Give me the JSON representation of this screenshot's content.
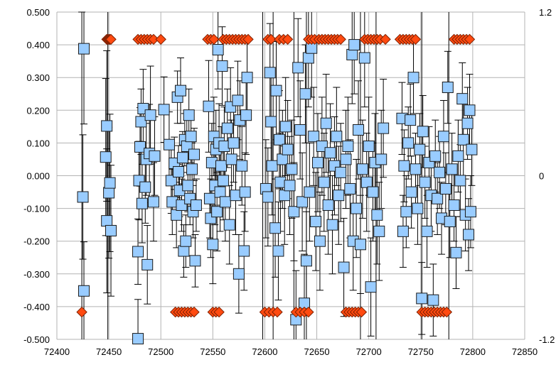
{
  "chart_data": {
    "type": "scatter",
    "title": "",
    "xlabel": "",
    "ylabel": "",
    "xlim": [
      72400,
      72850
    ],
    "ylim": [
      -0.5,
      0.5
    ],
    "y2lim": [
      -1.2,
      1.2
    ],
    "grid": true,
    "legend": "none",
    "x_ticks": [
      "72400",
      "72450",
      "72500",
      "72550",
      "72600",
      "72650",
      "72700",
      "72750",
      "72800",
      "72850"
    ],
    "y_ticks": [
      "-0.500",
      "-0.400",
      "-0.300",
      "-0.200",
      "-0.100",
      "0.000",
      "0.100",
      "0.200",
      "0.300",
      "0.400",
      "0.500"
    ],
    "y2_ticks": [
      "-1.2",
      "0",
      "1.2"
    ],
    "colors": {
      "squares_fill": "#99ccff",
      "squares_stroke": "#1a1a1a",
      "diamonds_fill": "#ff4a10",
      "diamonds_stroke": "#7a1f00",
      "error_bars": "#000000",
      "grid": "#b3b3b3",
      "axis": "#b3b3b3"
    },
    "series": [
      {
        "marker": "square",
        "axis": "y",
        "points": [
          [
            72425,
            -0.065,
            0.19
          ],
          [
            72426,
            0.388,
            0.23
          ],
          [
            72426,
            -0.352,
            0.15
          ],
          [
            72447,
            0.057,
            0.24
          ],
          [
            72448,
            0.152,
            0.23
          ],
          [
            72448,
            -0.138,
            0.22
          ],
          [
            72450,
            -0.052,
            0.2
          ],
          [
            72451,
            -0.022,
            0.21
          ],
          [
            72452,
            -0.168,
            0.2
          ],
          [
            72478,
            -0.498,
            0.12
          ],
          [
            72478,
            -0.232,
            0.1
          ],
          [
            72479,
            -0.015,
            0.12
          ],
          [
            72480,
            0.088,
            0.12
          ],
          [
            72481,
            0.165,
            0.1
          ],
          [
            72482,
            -0.085,
            0.12
          ],
          [
            72483,
            0.205,
            0.12
          ],
          [
            72485,
            -0.035,
            0.11
          ],
          [
            72486,
            0.05,
            0.11
          ],
          [
            72487,
            -0.272,
            0.12
          ],
          [
            72489,
            0.068,
            0.15
          ],
          [
            72490,
            0.185,
            0.15
          ],
          [
            72493,
            -0.08,
            0.12
          ],
          [
            72494,
            0.06,
            0.12
          ],
          [
            72503,
            0.202,
            0.1
          ],
          [
            72508,
            0.095,
            0.1
          ],
          [
            72510,
            -0.015,
            0.1
          ],
          [
            72511,
            -0.08,
            0.1
          ],
          [
            72513,
            0.038,
            0.08
          ],
          [
            72515,
            -0.12,
            0.1
          ],
          [
            72516,
            0.24,
            0.08
          ],
          [
            72517,
            0.012,
            0.08
          ],
          [
            72518,
            -0.045,
            0.08
          ],
          [
            72519,
            0.26,
            0.1
          ],
          [
            72520,
            -0.09,
            0.08
          ],
          [
            72521,
            0.055,
            0.08
          ],
          [
            72522,
            -0.23,
            0.08
          ],
          [
            72523,
            0.11,
            0.08
          ],
          [
            72524,
            -0.2,
            0.08
          ],
          [
            72525,
            0.09,
            0.08
          ],
          [
            72526,
            -0.03,
            0.08
          ],
          [
            72527,
            0.185,
            0.08
          ],
          [
            72528,
            -0.07,
            0.08
          ],
          [
            72529,
            0.12,
            0.08
          ],
          [
            72530,
            0.02,
            0.08
          ],
          [
            72531,
            -0.11,
            0.08
          ],
          [
            72532,
            0.065,
            0.08
          ],
          [
            72533,
            -0.26,
            0.08
          ],
          [
            72534,
            -0.09,
            0.08
          ],
          [
            72546,
            0.212,
            0.14
          ],
          [
            72547,
            -0.07,
            0.12
          ],
          [
            72548,
            -0.13,
            0.12
          ],
          [
            72549,
            0.04,
            0.12
          ],
          [
            72550,
            -0.21,
            0.12
          ],
          [
            72551,
            0.12,
            0.12
          ],
          [
            72552,
            -0.03,
            0.12
          ],
          [
            72553,
            0.08,
            0.12
          ],
          [
            72554,
            -0.11,
            0.12
          ],
          [
            72555,
            0.385,
            0.12
          ],
          [
            72556,
            0.1,
            0.12
          ],
          [
            72557,
            -0.05,
            0.12
          ],
          [
            72558,
            0.03,
            0.12
          ],
          [
            72559,
            0.335,
            0.12
          ],
          [
            72560,
            -0.015,
            0.12
          ],
          [
            72561,
            0.09,
            0.12
          ],
          [
            72562,
            -0.08,
            0.12
          ],
          [
            72564,
            0.145,
            0.12
          ],
          [
            72566,
            -0.15,
            0.12
          ],
          [
            72567,
            0.21,
            0.12
          ],
          [
            72568,
            0.05,
            0.12
          ],
          [
            72570,
            0.1,
            0.12
          ],
          [
            72572,
            -0.06,
            0.12
          ],
          [
            72574,
            0.23,
            0.12
          ],
          [
            72575,
            -0.3,
            0.12
          ],
          [
            72576,
            0.17,
            0.12
          ],
          [
            72578,
            0.03,
            0.12
          ],
          [
            72580,
            -0.23,
            0.12
          ],
          [
            72581,
            -0.05,
            0.12
          ],
          [
            72582,
            0.185,
            0.12
          ],
          [
            72583,
            0.3,
            0.12
          ],
          [
            72601,
            -0.04,
            0.15
          ],
          [
            72603,
            -0.065,
            0.15
          ],
          [
            72605,
            0.315,
            0.15
          ],
          [
            72606,
            0.165,
            0.15
          ],
          [
            72607,
            0.03,
            0.15
          ],
          [
            72610,
            -0.16,
            0.15
          ],
          [
            72611,
            0.26,
            0.15
          ],
          [
            72613,
            -0.23,
            0.15
          ],
          [
            72614,
            0.11,
            0.15
          ],
          [
            72615,
            -0.02,
            0.15
          ],
          [
            72617,
            0.05,
            0.15
          ],
          [
            72619,
            -0.06,
            0.15
          ],
          [
            72620,
            0.15,
            0.15
          ],
          [
            72622,
            0.08,
            0.15
          ],
          [
            72624,
            -0.03,
            0.15
          ],
          [
            72626,
            0.02,
            0.15
          ],
          [
            72628,
            -0.11,
            0.15
          ],
          [
            72630,
            -0.44,
            0.15
          ],
          [
            72632,
            0.33,
            0.15
          ],
          [
            72634,
            0.14,
            0.15
          ],
          [
            72636,
            -0.08,
            0.15
          ],
          [
            72638,
            -0.39,
            0.15
          ],
          [
            72639,
            0.25,
            0.15
          ],
          [
            72640,
            -0.26,
            0.15
          ],
          [
            72642,
            0.36,
            0.15
          ],
          [
            72643,
            -0.05,
            0.15
          ],
          [
            72645,
            0.39,
            0.15
          ],
          [
            72647,
            0.12,
            0.15
          ],
          [
            72649,
            -0.14,
            0.15
          ],
          [
            72651,
            0.04,
            0.15
          ],
          [
            72653,
            -0.2,
            0.15
          ],
          [
            72655,
            0.09,
            0.15
          ],
          [
            72657,
            -0.02,
            0.15
          ],
          [
            72659,
            0.16,
            0.15
          ],
          [
            72661,
            -0.09,
            0.15
          ],
          [
            72663,
            0.07,
            0.15
          ],
          [
            72665,
            -0.15,
            0.15
          ],
          [
            72667,
            0.03,
            0.15
          ],
          [
            72669,
            0.12,
            0.15
          ],
          [
            72671,
            -0.06,
            0.15
          ],
          [
            72673,
            0.01,
            0.15
          ],
          [
            72676,
            -0.28,
            0.15
          ],
          [
            72678,
            0.05,
            0.15
          ],
          [
            72680,
            0.09,
            0.15
          ],
          [
            72682,
            -0.04,
            0.15
          ],
          [
            72684,
            0.37,
            0.15
          ],
          [
            72685,
            -0.2,
            0.15
          ],
          [
            72686,
            0.4,
            0.15
          ],
          [
            72688,
            -0.1,
            0.15
          ],
          [
            72690,
            0.14,
            0.15
          ],
          [
            72692,
            -0.21,
            0.15
          ],
          [
            72694,
            0.02,
            0.15
          ],
          [
            72696,
            0.36,
            0.15
          ],
          [
            72698,
            -0.02,
            0.15
          ],
          [
            72700,
            0.09,
            0.15
          ],
          [
            72702,
            -0.34,
            0.15
          ],
          [
            72704,
            -0.05,
            0.15
          ],
          [
            72706,
            0.04,
            0.15
          ],
          [
            72708,
            -0.12,
            0.15
          ],
          [
            72710,
            -0.17,
            0.15
          ],
          [
            72712,
            0.05,
            0.15
          ],
          [
            72714,
            0.145,
            0.15
          ],
          [
            72732,
            0.175,
            0.11
          ],
          [
            72733,
            -0.17,
            0.11
          ],
          [
            72734,
            0.03,
            0.11
          ],
          [
            72736,
            -0.11,
            0.11
          ],
          [
            72738,
            0.1,
            0.11
          ],
          [
            72740,
            0.17,
            0.11
          ],
          [
            72741,
            -0.05,
            0.11
          ],
          [
            72743,
            0.3,
            0.11
          ],
          [
            72745,
            0.02,
            0.11
          ],
          [
            72747,
            -0.1,
            0.11
          ],
          [
            72749,
            0.08,
            0.11
          ],
          [
            72751,
            -0.375,
            0.11
          ],
          [
            72752,
            0.135,
            0.11
          ],
          [
            72754,
            -0.02,
            0.11
          ],
          [
            72756,
            -0.17,
            0.11
          ],
          [
            72758,
            0.04,
            0.11
          ],
          [
            72760,
            -0.06,
            0.11
          ],
          [
            72762,
            -0.38,
            0.11
          ],
          [
            72764,
            0.06,
            0.11
          ],
          [
            72766,
            -0.07,
            0.11
          ],
          [
            72768,
            0.01,
            0.11
          ],
          [
            72770,
            -0.13,
            0.11
          ],
          [
            72772,
            0.12,
            0.11
          ],
          [
            72774,
            -0.04,
            0.11
          ],
          [
            72776,
            0.27,
            0.11
          ],
          [
            72778,
            -0.14,
            0.11
          ],
          [
            72780,
            0.02,
            0.11
          ],
          [
            72782,
            -0.09,
            0.11
          ],
          [
            72784,
            -0.235,
            0.11
          ],
          [
            72786,
            0.06,
            0.11
          ],
          [
            72788,
            -0.015,
            0.11
          ],
          [
            72790,
            0.235,
            0.11
          ],
          [
            72791,
            0.11,
            0.11
          ],
          [
            72793,
            -0.12,
            0.11
          ],
          [
            72795,
            0.16,
            0.11
          ],
          [
            72796,
            -0.18,
            0.11
          ],
          [
            72797,
            0.2,
            0.11
          ],
          [
            72798,
            -0.11,
            0.11
          ],
          [
            72799,
            0.08,
            0.11
          ]
        ]
      },
      {
        "marker": "diamond",
        "axis": "y2",
        "groups": [
          {
            "y": 1.0,
            "x": [
              72448,
              72449,
              72450,
              72451,
              72452
            ]
          },
          {
            "y": -1.0,
            "x": [
              72424
            ]
          },
          {
            "y": 1.0,
            "x": [
              72478,
              72481,
              72484,
              72487,
              72490,
              72493,
              72500
            ]
          },
          {
            "y": -1.0,
            "x": [
              72514,
              72517,
              72520,
              72523,
              72526,
              72529,
              72532
            ]
          },
          {
            "y": 1.0,
            "x": [
              72545,
              72548,
              72551
            ]
          },
          {
            "y": -1.0,
            "x": [
              72550,
              72553,
              72556
            ]
          },
          {
            "y": 1.0,
            "x": [
              72560,
              72563,
              72566,
              72569,
              72572,
              72575,
              72578,
              72581,
              72584
            ]
          },
          {
            "y": 1.0,
            "x": [
              72603,
              72606,
              72614,
              72618,
              72622
            ]
          },
          {
            "y": -1.0,
            "x": [
              72600,
              72604,
              72608,
              72612
            ]
          },
          {
            "y": -1.0,
            "x": [
              72630,
              72634,
              72638,
              72642
            ]
          },
          {
            "y": 1.0,
            "x": [
              72642,
              72645,
              72648,
              72652,
              72655,
              72658,
              72661,
              72664,
              72667,
              72670,
              72673
            ]
          },
          {
            "y": -1.0,
            "x": [
              72678,
              72681,
              72684,
              72687,
              72690,
              72693
            ]
          },
          {
            "y": 1.0,
            "x": [
              72696,
              72699,
              72702,
              72705,
              72708,
              72711,
              72716
            ]
          },
          {
            "y": 1.0,
            "x": [
              72730,
              72733,
              72736,
              72739,
              72742,
              72745
            ]
          },
          {
            "y": -1.0,
            "x": [
              72751,
              72754,
              72757,
              72760,
              72763,
              72766,
              72769,
              72772,
              72775
            ]
          },
          {
            "y": 1.0,
            "x": [
              72782,
              72785,
              72788,
              72791,
              72794,
              72797
            ]
          }
        ]
      }
    ],
    "tall_error_bars": [
      {
        "x": 72424,
        "y": -0.1,
        "e": 0.6
      },
      {
        "x": 72449,
        "y": 0.0,
        "e": 0.6
      },
      {
        "x": 72598,
        "y": 0.0,
        "e": 0.9
      },
      {
        "x": 72608,
        "y": 0.0,
        "e": 0.9
      },
      {
        "x": 72628,
        "y": 0.0,
        "e": 0.9
      },
      {
        "x": 72640,
        "y": 0.0,
        "e": 0.9
      },
      {
        "x": 72692,
        "y": 0.0,
        "e": 0.9
      },
      {
        "x": 72707,
        "y": 0.0,
        "e": 0.9
      },
      {
        "x": 72751,
        "y": 0.0,
        "e": 0.9
      },
      {
        "x": 72777,
        "y": 0.0,
        "e": 0.9
      }
    ]
  }
}
